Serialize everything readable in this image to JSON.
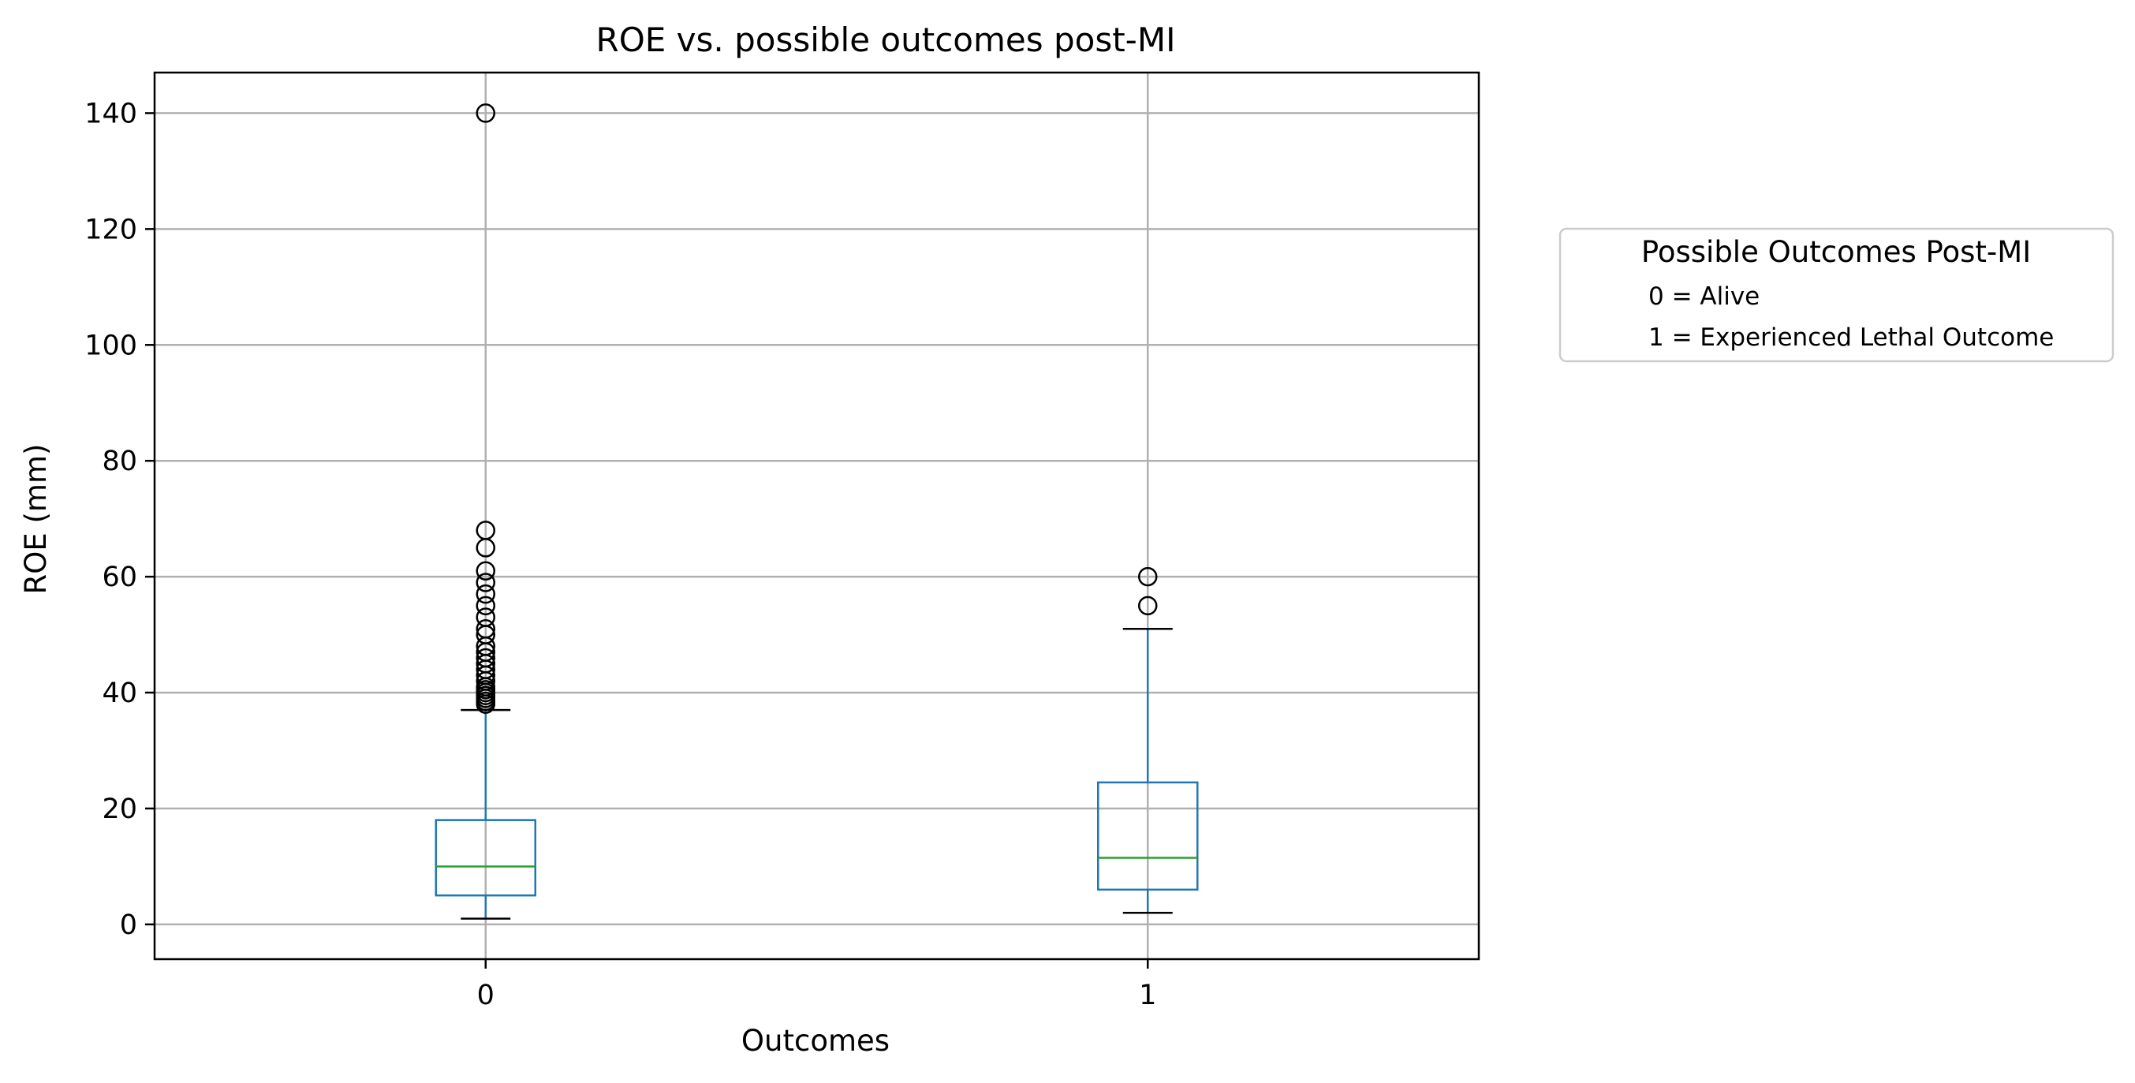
{
  "chart_data": {
    "type": "box",
    "title": "ROE vs. possible outcomes post-MI",
    "xlabel": "Outcomes",
    "ylabel": "ROE (mm)",
    "ylim": [
      -6,
      147
    ],
    "yticks": [
      0,
      20,
      40,
      60,
      80,
      100,
      120,
      140
    ],
    "categories": [
      "0",
      "1"
    ],
    "grid": true,
    "boxes": [
      {
        "category": "0",
        "whisker_low": 1,
        "q1": 5,
        "median": 10,
        "q3": 18,
        "whisker_high": 37,
        "outliers": [
          38,
          38.5,
          39,
          39.5,
          40,
          40.5,
          41,
          42,
          43,
          44,
          45,
          46,
          47,
          48,
          50,
          51,
          53,
          55,
          57,
          59,
          61,
          65,
          68,
          140
        ]
      },
      {
        "category": "1",
        "whisker_low": 2,
        "q1": 6,
        "median": 11.5,
        "q3": 24.5,
        "whisker_high": 51,
        "outliers": [
          55,
          60
        ]
      }
    ],
    "legend": {
      "title": "Possible Outcomes Post-MI",
      "entries": [
        "0 = Alive",
        "1 = Experienced Lethal Outcome"
      ],
      "placement": "outside-right"
    },
    "colors": {
      "box": "#1f77b4",
      "median": "#2ca02c",
      "whisker_cap": "#000000",
      "grid": "#b0b0b0"
    }
  }
}
